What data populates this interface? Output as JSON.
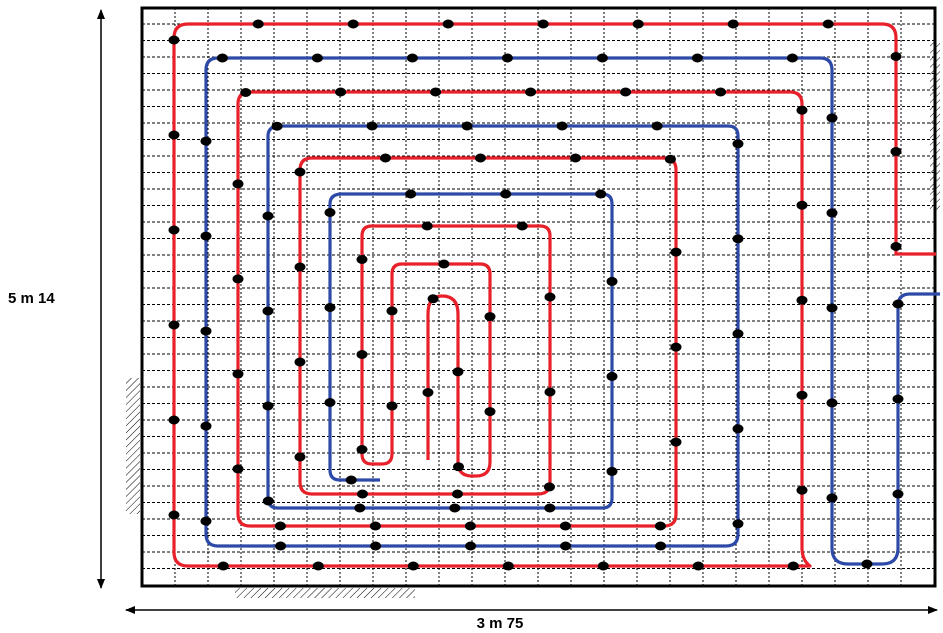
{
  "dimensions": {
    "height_label": "5 m 14",
    "width_label": "3 m 75"
  },
  "colors": {
    "supply": "#e8202a",
    "return": "#2e4aa8",
    "clip": "#000000",
    "grid": "#000000",
    "background": "#ffffff"
  },
  "pipe_circuits": [
    "supply",
    "return"
  ]
}
